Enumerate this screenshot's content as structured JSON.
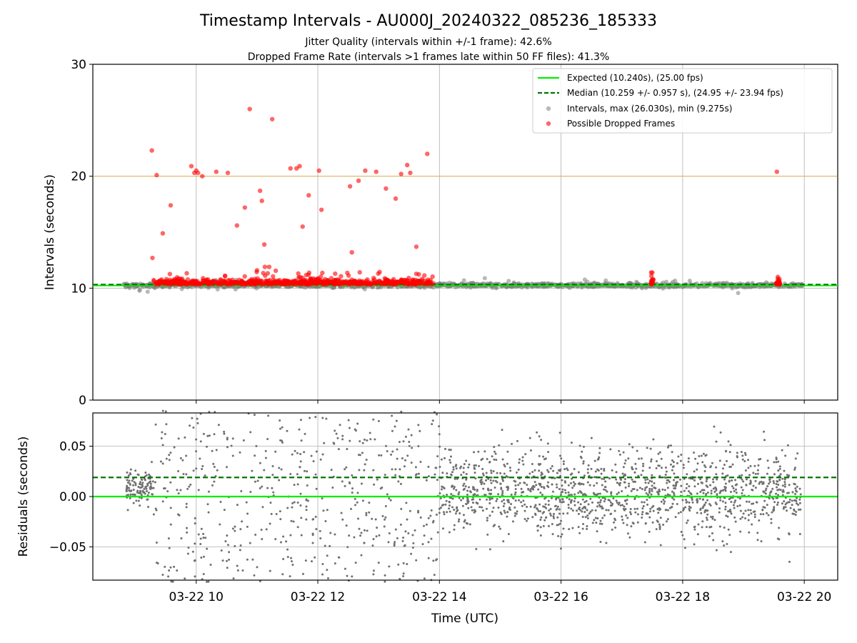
{
  "chart_data": {
    "type": "scatter",
    "title": "Timestamp Intervals - AU000J_20240322_085236_185333",
    "subtitle_lines": [
      "Jitter Quality (intervals within +/-1 frame): 42.6%",
      "Dropped Frame Rate (intervals >1 frames late within 50 FF files): 41.3%"
    ],
    "xlabel": "Time (UTC)",
    "x_tick_labels": [
      "03-22 10",
      "03-22 12",
      "03-22 14",
      "03-22 16",
      "03-22 18",
      "03-22 20"
    ],
    "x_tick_values": [
      10,
      12,
      14,
      16,
      18,
      20
    ],
    "xlim": [
      8.3,
      20.55
    ],
    "grid": true,
    "colors": {
      "expected": "#00ee00",
      "median": "#007700",
      "intervals": "#808080",
      "dropped": "#ff0000",
      "threshold": "#ffa500"
    },
    "top_panel": {
      "ylabel": "Intervals (seconds)",
      "ylim": [
        0,
        30
      ],
      "y_ticks": [
        0,
        10,
        20,
        30
      ],
      "y_tick_labels": [
        "0",
        "10",
        "20",
        "30"
      ],
      "threshold_line": 20,
      "legend": {
        "position": "top-right",
        "entries": [
          {
            "label": "Expected (10.240s), (25.00 fps)",
            "style": "line"
          },
          {
            "label": "Median (10.259 +/- 0.957 s), (24.95 +/- 23.94 fps)",
            "style": "dashed"
          },
          {
            "label": "Intervals, max (26.030s), min (9.275s)",
            "style": "gray-dot"
          },
          {
            "label": "Possible Dropped Frames",
            "style": "red-dot"
          }
        ]
      },
      "expected_value": 10.24,
      "median_value": 10.259,
      "intervals_summary": {
        "max": 26.03,
        "min": 9.275
      },
      "dropped_points": [
        [
          9.27,
          22.3
        ],
        [
          9.35,
          20.1
        ],
        [
          9.28,
          12.7
        ],
        [
          9.45,
          14.9
        ],
        [
          9.58,
          17.4
        ],
        [
          9.92,
          20.9
        ],
        [
          9.97,
          20.3
        ],
        [
          10.0,
          20.5
        ],
        [
          10.03,
          20.3
        ],
        [
          10.1,
          20.0
        ],
        [
          10.33,
          20.4
        ],
        [
          10.52,
          20.3
        ],
        [
          10.67,
          15.6
        ],
        [
          10.8,
          17.2
        ],
        [
          10.88,
          26.0
        ],
        [
          11.0,
          11.6
        ],
        [
          11.05,
          18.7
        ],
        [
          11.08,
          17.8
        ],
        [
          11.12,
          13.9
        ],
        [
          11.13,
          11.9
        ],
        [
          11.2,
          11.9
        ],
        [
          11.25,
          25.1
        ],
        [
          11.55,
          20.7
        ],
        [
          11.65,
          20.7
        ],
        [
          11.7,
          20.9
        ],
        [
          11.75,
          15.5
        ],
        [
          11.85,
          18.3
        ],
        [
          12.02,
          20.5
        ],
        [
          12.06,
          17.0
        ],
        [
          12.53,
          19.1
        ],
        [
          12.56,
          13.2
        ],
        [
          12.67,
          19.6
        ],
        [
          12.78,
          20.5
        ],
        [
          12.96,
          20.4
        ],
        [
          13.12,
          18.9
        ],
        [
          13.28,
          18.0
        ],
        [
          13.37,
          20.2
        ],
        [
          13.47,
          21.0
        ],
        [
          13.52,
          20.3
        ],
        [
          13.62,
          13.7
        ],
        [
          13.8,
          22.0
        ],
        [
          19.55,
          20.4
        ]
      ]
    },
    "bottom_panel": {
      "ylabel": "Residuals (seconds)",
      "ylim": [
        -0.083,
        0.083
      ],
      "y_ticks": [
        -0.05,
        0.0,
        0.05
      ],
      "y_tick_labels": [
        "−0.05",
        "0.00",
        "0.05"
      ],
      "expected_residual": 0.0,
      "median_residual": 0.019
    }
  }
}
